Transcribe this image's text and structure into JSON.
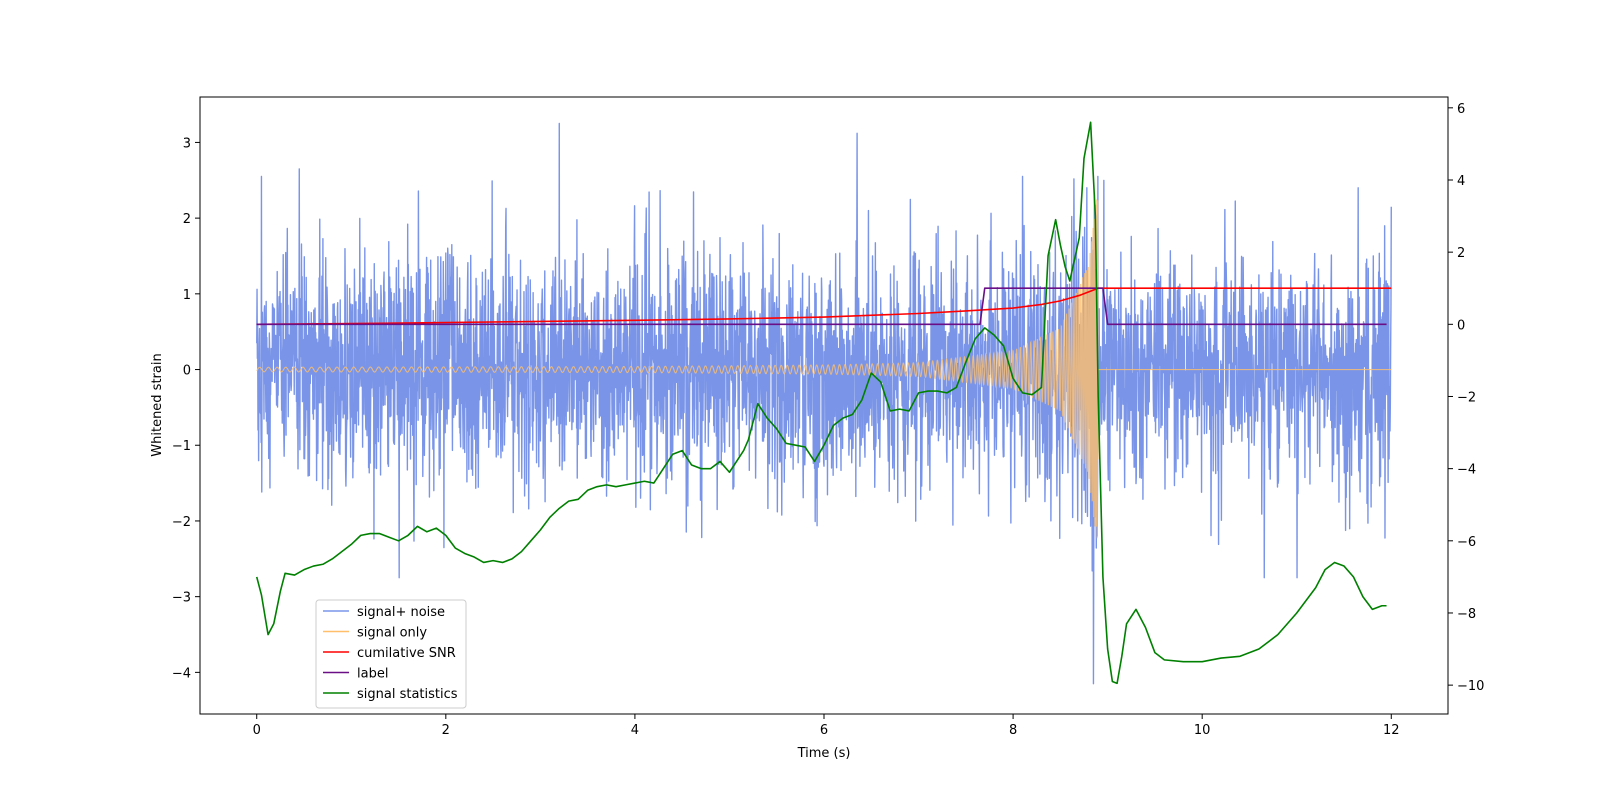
{
  "chart_data": {
    "type": "line",
    "title": "",
    "xlabel": "Time (s)",
    "ylabel": "Whitened strain",
    "y2label": "",
    "xlim": [
      -0.6,
      12.6
    ],
    "ylim": [
      -4.55,
      3.6
    ],
    "y2lim": [
      -10.8,
      6.3
    ],
    "xticks": [
      0,
      2,
      4,
      6,
      8,
      10,
      12
    ],
    "yticks": [
      -4,
      -3,
      -2,
      -1,
      0,
      1,
      2,
      3
    ],
    "y2ticks": [
      -10,
      -8,
      -6,
      -4,
      -2,
      0,
      2,
      4,
      6
    ],
    "grid": false,
    "legend_placement": "lower-left",
    "series": [
      {
        "name": "signal+ noise",
        "color": "#7a95e8",
        "axis": "left",
        "description": "white gaussian noise plus chirp, sampled densely from 0 to 12 s",
        "x_range": [
          0,
          12
        ],
        "amplitude_std": 0.75,
        "peaks": [
          [
            0.05,
            2.55
          ],
          [
            0.45,
            2.65
          ],
          [
            3.2,
            3.25
          ],
          [
            6.35,
            3.12
          ],
          [
            8.1,
            2.55
          ],
          [
            8.85,
            -4.15
          ],
          [
            8.78,
            2.4
          ],
          [
            11.65,
            2.4
          ],
          [
            12.0,
            2.15
          ]
        ]
      },
      {
        "name": "signal only",
        "color": "#ffbf6b",
        "axis": "left",
        "description": "inspiral chirp, amplitude growing until merger at 8.9 s, zero afterwards",
        "x_range": [
          0,
          12
        ],
        "merger_time": 8.9,
        "envelope": [
          [
            0,
            0.03
          ],
          [
            2,
            0.035
          ],
          [
            4,
            0.04
          ],
          [
            6,
            0.06
          ],
          [
            7,
            0.09
          ],
          [
            8,
            0.25
          ],
          [
            8.5,
            0.55
          ],
          [
            8.8,
            1.4
          ],
          [
            8.88,
            2.25
          ]
        ]
      },
      {
        "name": "cumilative SNR",
        "color": "#ff0000",
        "axis": "right",
        "x": [
          0,
          1,
          2,
          3,
          4,
          5,
          6,
          7,
          7.5,
          8,
          8.3,
          8.5,
          8.7,
          8.8,
          8.9,
          9.0,
          12
        ],
        "y": [
          0,
          0.02,
          0.05,
          0.08,
          0.11,
          0.15,
          0.2,
          0.3,
          0.37,
          0.45,
          0.55,
          0.65,
          0.8,
          0.9,
          1.0,
          1.0,
          1.0
        ]
      },
      {
        "name": "label",
        "color": "#6a0f85",
        "axis": "right",
        "x": [
          0,
          7.65,
          7.7,
          8.95,
          9.0,
          11.95
        ],
        "y": [
          0,
          0,
          1,
          1,
          0,
          0
        ]
      },
      {
        "name": "signal statistics",
        "color": "#008000",
        "axis": "right",
        "x": [
          0,
          0.05,
          0.12,
          0.18,
          0.25,
          0.3,
          0.4,
          0.5,
          0.6,
          0.7,
          0.8,
          0.9,
          1.0,
          1.1,
          1.2,
          1.3,
          1.4,
          1.5,
          1.6,
          1.7,
          1.8,
          1.9,
          2.0,
          2.1,
          2.2,
          2.3,
          2.4,
          2.5,
          2.6,
          2.7,
          2.8,
          2.9,
          3.0,
          3.1,
          3.2,
          3.3,
          3.4,
          3.5,
          3.6,
          3.7,
          3.8,
          3.9,
          4.0,
          4.1,
          4.2,
          4.3,
          4.4,
          4.5,
          4.6,
          4.7,
          4.8,
          4.9,
          5.0,
          5.1,
          5.15,
          5.2,
          5.3,
          5.4,
          5.5,
          5.6,
          5.7,
          5.8,
          5.9,
          6.0,
          6.1,
          6.2,
          6.3,
          6.4,
          6.5,
          6.6,
          6.7,
          6.8,
          6.9,
          7.0,
          7.1,
          7.2,
          7.3,
          7.4,
          7.5,
          7.6,
          7.7,
          7.8,
          7.9,
          8.0,
          8.1,
          8.2,
          8.3,
          8.37,
          8.45,
          8.5,
          8.55,
          8.6,
          8.7,
          8.75,
          8.82,
          8.87,
          8.9,
          8.95,
          9.0,
          9.05,
          9.1,
          9.15,
          9.2,
          9.3,
          9.4,
          9.5,
          9.6,
          9.8,
          10.0,
          10.2,
          10.4,
          10.6,
          10.8,
          11.0,
          11.2,
          11.3,
          11.4,
          11.5,
          11.6,
          11.7,
          11.8,
          11.9,
          11.95
        ],
        "y": [
          -7.0,
          -7.5,
          -8.6,
          -8.3,
          -7.4,
          -6.9,
          -6.95,
          -6.8,
          -6.7,
          -6.65,
          -6.5,
          -6.3,
          -6.1,
          -5.85,
          -5.8,
          -5.8,
          -5.9,
          -6.0,
          -5.85,
          -5.6,
          -5.75,
          -5.65,
          -5.85,
          -6.2,
          -6.35,
          -6.45,
          -6.6,
          -6.55,
          -6.6,
          -6.5,
          -6.3,
          -6.0,
          -5.7,
          -5.35,
          -5.1,
          -4.9,
          -4.85,
          -4.6,
          -4.5,
          -4.45,
          -4.5,
          -4.45,
          -4.4,
          -4.35,
          -4.4,
          -4.0,
          -3.6,
          -3.5,
          -3.9,
          -4.0,
          -4.0,
          -3.8,
          -4.1,
          -3.7,
          -3.5,
          -3.2,
          -2.2,
          -2.6,
          -2.9,
          -3.3,
          -3.35,
          -3.4,
          -3.8,
          -3.35,
          -2.8,
          -2.6,
          -2.5,
          -2.1,
          -1.35,
          -1.6,
          -2.4,
          -2.35,
          -2.4,
          -1.9,
          -1.85,
          -1.85,
          -1.9,
          -1.75,
          -1.05,
          -0.4,
          -0.1,
          -0.3,
          -0.6,
          -1.5,
          -1.9,
          -1.95,
          -1.75,
          1.9,
          2.9,
          2.2,
          1.6,
          1.2,
          2.4,
          4.6,
          5.6,
          3.0,
          -2.0,
          -7.0,
          -9.0,
          -9.9,
          -9.95,
          -9.2,
          -8.3,
          -7.9,
          -8.4,
          -9.1,
          -9.3,
          -9.35,
          -9.35,
          -9.25,
          -9.2,
          -9.0,
          -8.6,
          -8.0,
          -7.3,
          -6.8,
          -6.6,
          -6.7,
          -7.0,
          -7.55,
          -7.9,
          -7.8,
          -7.8
        ]
      }
    ]
  }
}
